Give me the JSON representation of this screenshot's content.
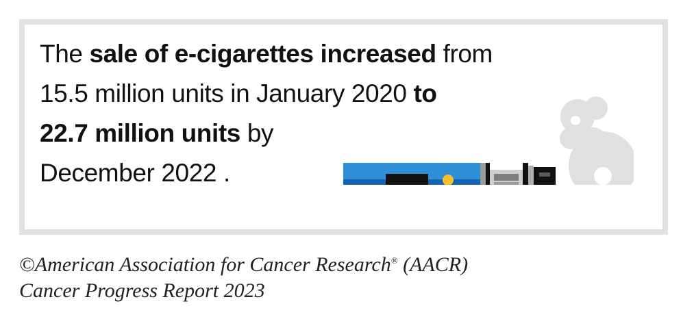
{
  "statement": {
    "t1": "The ",
    "b1": "sale of e-cigarettes increased",
    "t2": " from",
    "t3": "15.5 million units in January 2020 ",
    "b2": "to",
    "b3": "22.7 million units",
    "t4": " by",
    "t5": "December 2022 ."
  },
  "credit": {
    "line1_a": "©American Association for Cancer Research",
    "line1_reg": "®",
    "line1_b": " (AACR)",
    "line2": "Cancer Progress Report 2023"
  },
  "illustration": {
    "icon": "e-cigarette-icon",
    "vapor_icon": "vapor-cloud-icon",
    "colors": {
      "frame": "#e2e2e2",
      "body_light_blue": "#2e8fd6",
      "body_dark_blue": "#1565b4",
      "button": "#f5c02c",
      "vapor": "#e0e0e0",
      "mouthpiece": "#111111"
    }
  }
}
